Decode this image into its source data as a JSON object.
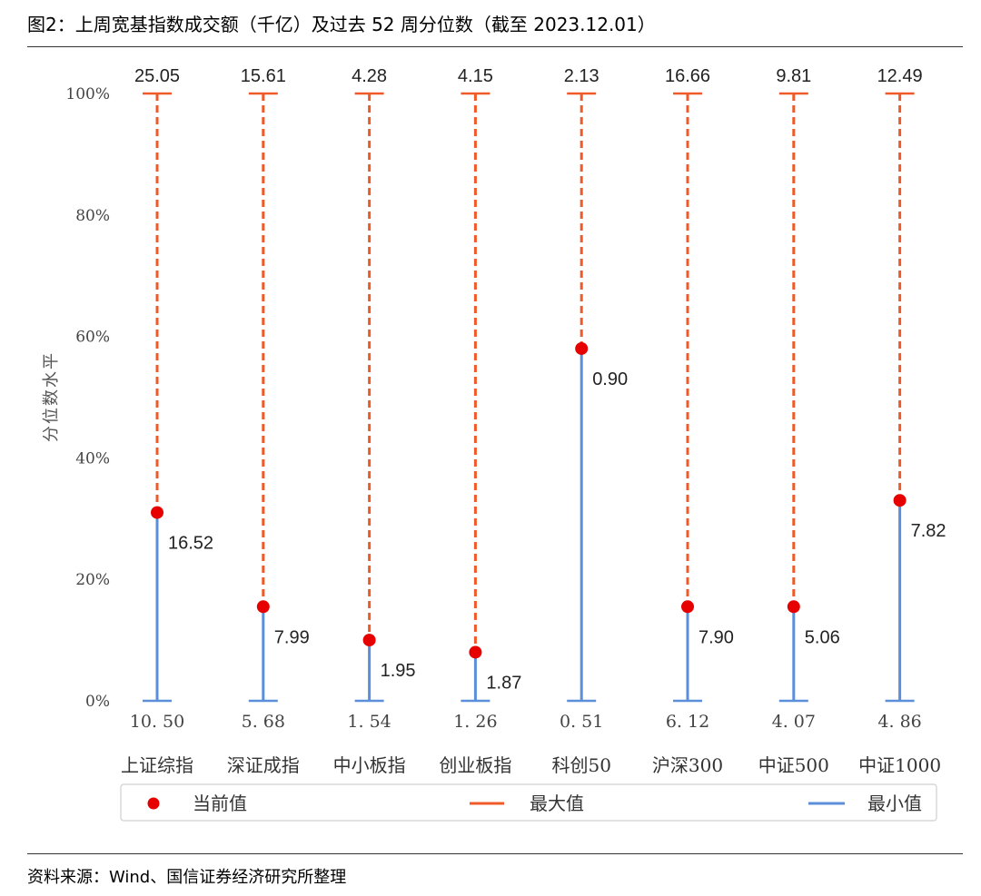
{
  "figure": {
    "title": "图2：上周宽基指数成交额（千亿）及过去 52 周分位数（截至 2023.12.01）",
    "source": "资料来源：Wind、国信证券经济研究所整理"
  },
  "chart_data": {
    "type": "dumbbell",
    "title": "上周宽基指数成交额（千亿）及过去 52 周分位数（截至 2023.12.01）",
    "xlabel": "",
    "ylabel": "分位数水平",
    "ylim": [
      0,
      100
    ],
    "y_ticks": [
      "0%",
      "20%",
      "40%",
      "60%",
      "80%",
      "100%"
    ],
    "y_tick_values": [
      0,
      20,
      40,
      60,
      80,
      100
    ],
    "grid": false,
    "legend_position": "bottom",
    "categories": [
      "上证综指",
      "深证成指",
      "中小板指",
      "创业板指",
      "科创50",
      "沪深300",
      "中证500",
      "中证1000"
    ],
    "series": [
      {
        "name": "当前值",
        "color": "#e60000",
        "percentile": [
          31,
          15.5,
          10,
          8,
          58,
          15.5,
          15.5,
          33
        ],
        "labels": [
          "16.52",
          "7.99",
          "1.95",
          "1.87",
          "0.90",
          "7.90",
          "5.06",
          "7.82"
        ]
      },
      {
        "name": "最大值",
        "color": "#f05a28",
        "percentile": [
          100,
          100,
          100,
          100,
          100,
          100,
          100,
          100
        ],
        "labels": [
          "25.05",
          "15.61",
          "4.28",
          "4.15",
          "2.13",
          "16.66",
          "9.81",
          "12.49"
        ]
      },
      {
        "name": "最小值",
        "color": "#5b8fd9",
        "percentile": [
          0,
          0,
          0,
          0,
          0,
          0,
          0,
          0
        ],
        "labels": [
          "10. 50",
          "5. 68",
          "1. 54",
          "1. 26",
          "0. 51",
          "6. 12",
          "4. 07",
          "4. 86"
        ]
      }
    ],
    "legend": [
      {
        "name": "当前值",
        "marker": "dot",
        "color": "#e60000"
      },
      {
        "name": "最大值",
        "marker": "dash-line",
        "color": "#f05a28"
      },
      {
        "name": "最小值",
        "marker": "line",
        "color": "#5b8fd9"
      }
    ]
  }
}
